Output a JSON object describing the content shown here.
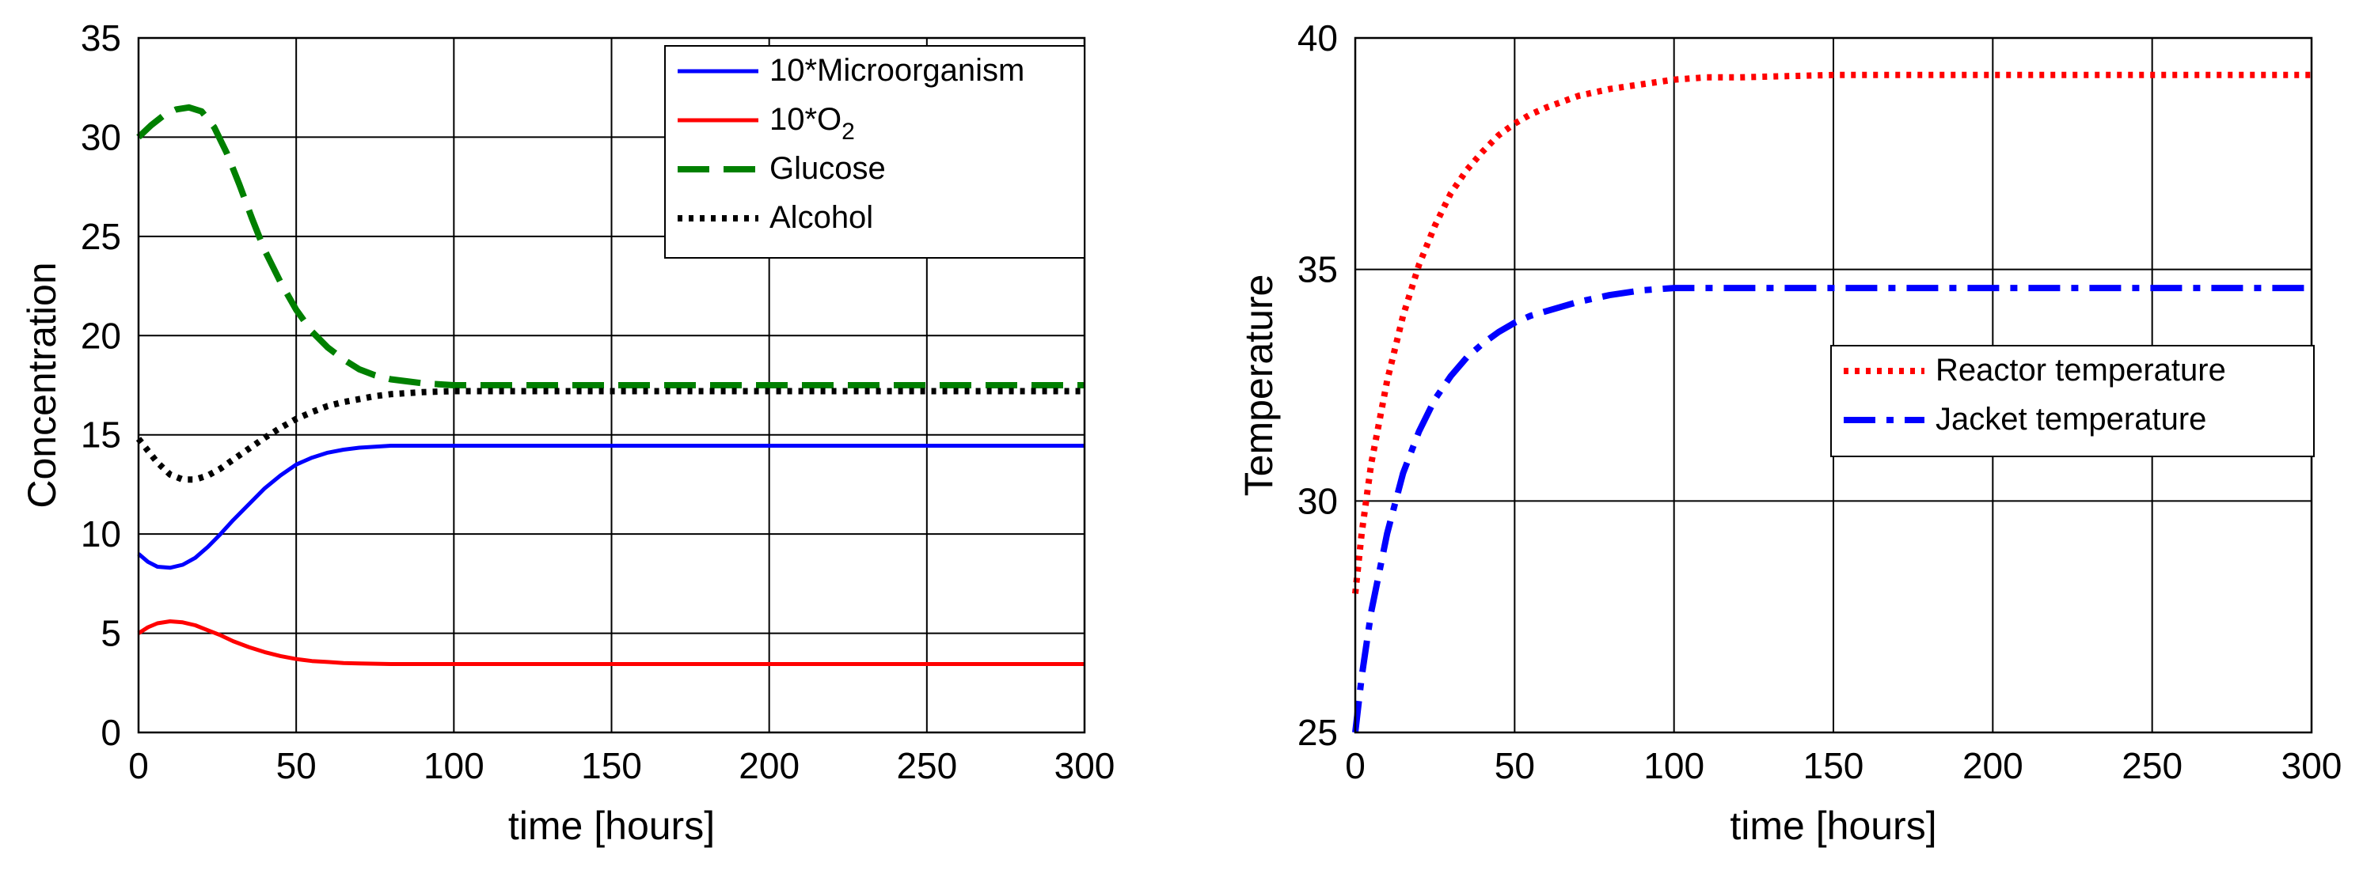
{
  "chart_data": [
    {
      "type": "line",
      "title": "",
      "xlabel": "time [hours]",
      "ylabel": "Concentration",
      "xlim": [
        0,
        300
      ],
      "ylim": [
        0,
        35
      ],
      "xticks": [
        "0",
        "50",
        "100",
        "150",
        "200",
        "250",
        "300"
      ],
      "yticks": [
        "0",
        "5",
        "10",
        "15",
        "20",
        "25",
        "30",
        "35"
      ],
      "grid": true,
      "legend_position": "top-right",
      "series": [
        {
          "name": "10*Microorganism",
          "legend_main": "10*Microorganism",
          "legend_sub": "",
          "color": "#0000ff",
          "style": "solid",
          "x": [
            0,
            3,
            6,
            10,
            14,
            18,
            22,
            26,
            30,
            35,
            40,
            45,
            50,
            55,
            60,
            65,
            70,
            75,
            80,
            90,
            100,
            120,
            150,
            200,
            250,
            300
          ],
          "y": [
            9.0,
            8.6,
            8.35,
            8.3,
            8.45,
            8.8,
            9.35,
            10.0,
            10.7,
            11.5,
            12.3,
            12.95,
            13.5,
            13.85,
            14.1,
            14.25,
            14.35,
            14.4,
            14.45,
            14.45,
            14.45,
            14.45,
            14.45,
            14.45,
            14.45,
            14.45
          ]
        },
        {
          "name": "10*O2",
          "legend_main": "10*O",
          "legend_sub": "2",
          "color": "#ff0000",
          "style": "solid",
          "x": [
            0,
            3,
            6,
            10,
            14,
            18,
            22,
            26,
            30,
            35,
            40,
            45,
            50,
            55,
            60,
            65,
            70,
            80,
            90,
            100,
            120,
            150,
            200,
            250,
            300
          ],
          "y": [
            5.0,
            5.3,
            5.5,
            5.6,
            5.55,
            5.4,
            5.15,
            4.9,
            4.6,
            4.3,
            4.05,
            3.85,
            3.7,
            3.6,
            3.55,
            3.5,
            3.48,
            3.45,
            3.45,
            3.45,
            3.45,
            3.45,
            3.45,
            3.45,
            3.45
          ]
        },
        {
          "name": "Glucose",
          "legend_main": "Glucose",
          "legend_sub": "",
          "color": "#008000",
          "style": "dashed",
          "x": [
            0,
            4,
            8,
            12,
            16,
            20,
            24,
            28,
            32,
            36,
            40,
            45,
            50,
            55,
            60,
            65,
            70,
            75,
            80,
            85,
            90,
            95,
            100,
            120,
            150,
            200,
            250,
            300
          ],
          "y": [
            30.0,
            30.6,
            31.1,
            31.4,
            31.5,
            31.3,
            30.5,
            29.2,
            27.6,
            25.9,
            24.3,
            22.7,
            21.3,
            20.2,
            19.4,
            18.8,
            18.3,
            18.0,
            17.8,
            17.7,
            17.6,
            17.55,
            17.5,
            17.5,
            17.5,
            17.5,
            17.5,
            17.5
          ]
        },
        {
          "name": "Alcohol",
          "legend_main": "Alcohol",
          "legend_sub": "",
          "color": "#000000",
          "style": "dotted",
          "x": [
            0,
            3,
            6,
            10,
            14,
            18,
            22,
            26,
            30,
            35,
            40,
            45,
            50,
            55,
            60,
            65,
            70,
            75,
            80,
            90,
            100,
            120,
            150,
            200,
            250,
            300
          ],
          "y": [
            14.8,
            14.2,
            13.6,
            13.0,
            12.75,
            12.75,
            12.95,
            13.3,
            13.75,
            14.3,
            14.85,
            15.35,
            15.8,
            16.15,
            16.45,
            16.65,
            16.8,
            16.95,
            17.05,
            17.15,
            17.2,
            17.2,
            17.2,
            17.2,
            17.2,
            17.2
          ]
        }
      ]
    },
    {
      "type": "line",
      "title": "",
      "xlabel": "time [hours]",
      "ylabel": "Temperature",
      "xlim": [
        0,
        300
      ],
      "ylim": [
        25,
        40
      ],
      "xticks": [
        "0",
        "50",
        "100",
        "150",
        "200",
        "250",
        "300"
      ],
      "yticks": [
        "25",
        "30",
        "35",
        "40"
      ],
      "grid": true,
      "legend_position": "center-right",
      "series": [
        {
          "name": "Reactor temperature",
          "legend_main": "Reactor temperature",
          "legend_sub": "",
          "color": "#ff0000",
          "style": "dotted",
          "x": [
            0,
            2,
            5,
            10,
            15,
            20,
            25,
            30,
            35,
            40,
            45,
            50,
            55,
            60,
            70,
            80,
            90,
            100,
            110,
            120,
            150,
            200,
            250,
            300
          ],
          "y": [
            28.0,
            29.3,
            30.8,
            32.6,
            34.0,
            35.1,
            35.95,
            36.65,
            37.15,
            37.55,
            37.9,
            38.15,
            38.35,
            38.5,
            38.75,
            38.9,
            39.0,
            39.1,
            39.15,
            39.15,
            39.2,
            39.2,
            39.2,
            39.2
          ]
        },
        {
          "name": "Jacket temperature",
          "legend_main": "Jacket temperature",
          "legend_sub": "",
          "color": "#0000ff",
          "style": "dashdot",
          "x": [
            0,
            2,
            5,
            10,
            15,
            20,
            25,
            30,
            35,
            40,
            45,
            50,
            55,
            60,
            70,
            80,
            90,
            100,
            110,
            120,
            150,
            200,
            250,
            300
          ],
          "y": [
            25.0,
            26.2,
            27.6,
            29.3,
            30.6,
            31.5,
            32.2,
            32.7,
            33.1,
            33.4,
            33.65,
            33.85,
            34.0,
            34.1,
            34.3,
            34.45,
            34.55,
            34.6,
            34.6,
            34.6,
            34.6,
            34.6,
            34.6,
            34.6
          ]
        }
      ]
    }
  ]
}
